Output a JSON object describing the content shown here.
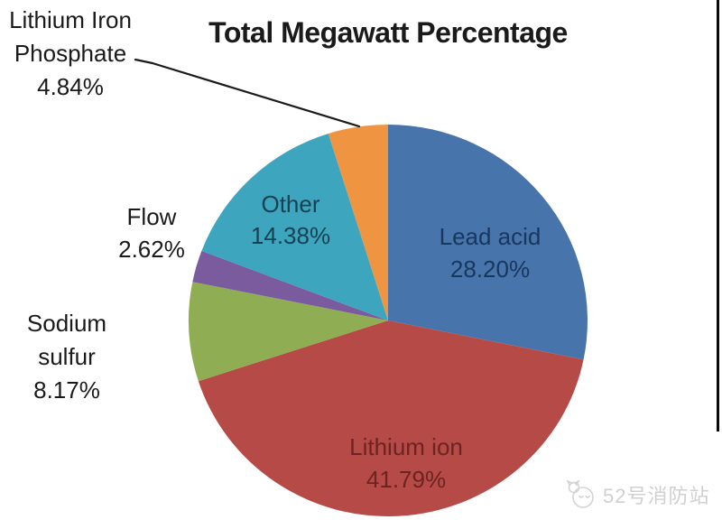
{
  "chart_data": {
    "type": "pie",
    "title": "Total Megawatt Percentage",
    "unit": "percent",
    "start_angle_deg": 0,
    "direction": "clockwise",
    "legend": "none",
    "slices": [
      {
        "label": "Lead acid",
        "value": 28.2,
        "display": "28.20%",
        "color": "#4874AC",
        "label_text_color": "#17375E",
        "label_placement": "inside"
      },
      {
        "label": "Lithium ion",
        "value": 41.79,
        "display": "41.79%",
        "color": "#B64A46",
        "label_text_color": "#6B2422",
        "label_placement": "inside"
      },
      {
        "label": "Sodium sulfur",
        "value": 8.17,
        "display": "8.17%",
        "color": "#8FAD52",
        "label_text_color": "#1a1a1a",
        "label_placement": "outside",
        "label_lines": [
          "Sodium",
          "sulfur"
        ]
      },
      {
        "label": "Flow",
        "value": 2.62,
        "display": "2.62%",
        "color": "#7A5C9E",
        "label_text_color": "#1a1a1a",
        "label_placement": "outside"
      },
      {
        "label": "Other",
        "value": 14.38,
        "display": "14.38%",
        "color": "#3DA5BD",
        "label_text_color": "#164254",
        "label_placement": "inside"
      },
      {
        "label": "Lithium Iron Phosphate",
        "value": 4.84,
        "display": "4.84%",
        "color": "#EF9541",
        "label_text_color": "#1a1a1a",
        "label_placement": "outside",
        "label_lines": [
          "Lithium Iron",
          "Phosphate"
        ],
        "leader_line": true
      }
    ]
  },
  "watermark": {
    "text": "52号消防站",
    "logo": "cat-face-logo"
  }
}
